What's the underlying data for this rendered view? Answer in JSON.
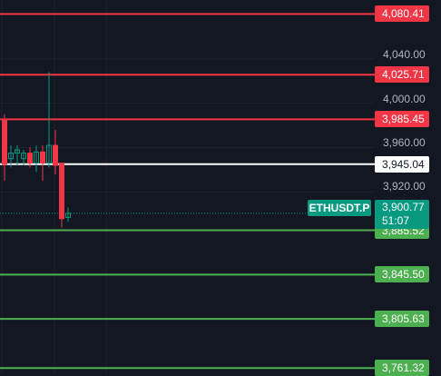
{
  "chart_data": {
    "type": "candlestick",
    "symbol": "ETHUSDT.P",
    "ylim": [
      3755,
      4093
    ],
    "y_ticks": [
      {
        "label": "4,040.00",
        "value": 4040
      },
      {
        "label": "4,000.00",
        "value": 4000
      },
      {
        "label": "3,960.00",
        "value": 3960
      },
      {
        "label": "3,920.00",
        "value": 3920
      }
    ],
    "last_price": {
      "value": 3900.77,
      "label": "3,900.77",
      "countdown": "51:07",
      "color": "#089981"
    },
    "resistance_lines": [
      {
        "value": 4080.41,
        "label": "4,080.41",
        "color": "#f23645"
      },
      {
        "value": 4025.71,
        "label": "4,025.71",
        "color": "#f23645"
      },
      {
        "value": 3985.45,
        "label": "3,985.45",
        "color": "#f23645"
      }
    ],
    "pivot_line": {
      "value": 3945.04,
      "label": "3,945.04",
      "color": "#ffffff"
    },
    "support_lines": [
      {
        "value": 3885.52,
        "label": "3,885.52",
        "color": "#4caf50"
      },
      {
        "value": 3845.5,
        "label": "3,845.50",
        "color": "#4caf50"
      },
      {
        "value": 3805.63,
        "label": "3,805.63",
        "color": "#4caf50"
      },
      {
        "value": 3761.32,
        "label": "3,761.32",
        "color": "#4caf50"
      }
    ],
    "candles": [
      {
        "o": 3985,
        "h": 3990,
        "l": 3930,
        "c": 3945
      },
      {
        "o": 3950,
        "h": 3962,
        "l": 3942,
        "c": 3955
      },
      {
        "o": 3955,
        "h": 3962,
        "l": 3944,
        "c": 3958
      },
      {
        "o": 3950,
        "h": 3958,
        "l": 3944,
        "c": 3955
      },
      {
        "o": 3955,
        "h": 3960,
        "l": 3942,
        "c": 3946
      },
      {
        "o": 3946,
        "h": 3962,
        "l": 3938,
        "c": 3956
      },
      {
        "o": 3956,
        "h": 3962,
        "l": 3930,
        "c": 3946
      },
      {
        "o": 3946,
        "h": 4028,
        "l": 3942,
        "c": 3962
      },
      {
        "o": 3962,
        "h": 3976,
        "l": 3936,
        "c": 3944
      },
      {
        "o": 3946,
        "h": 3946,
        "l": 3888,
        "c": 3896
      },
      {
        "o": 3897,
        "h": 3906,
        "l": 3893,
        "c": 3900.77
      }
    ],
    "colors": {
      "up": "#089981",
      "down": "#f23645",
      "grid": "#1e222d"
    }
  }
}
